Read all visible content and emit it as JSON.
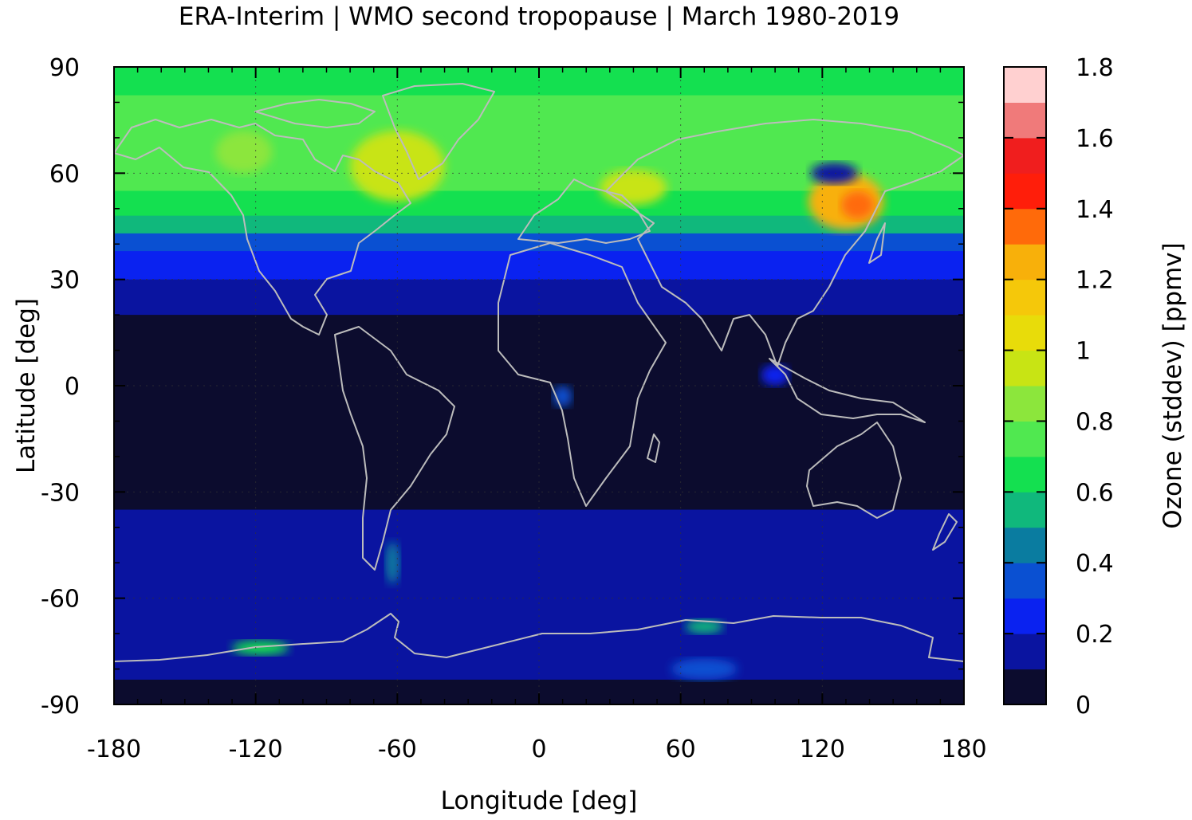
{
  "title": "ERA-Interim | WMO second tropopause | March 1980-2019",
  "chart_data": {
    "type": "heatmap",
    "title": "ERA-Interim | WMO second tropopause | March 1980-2019",
    "xlabel": "Longitude [deg]",
    "ylabel": "Latitude [deg]",
    "xlim": [
      -180,
      180
    ],
    "ylim": [
      -90,
      90
    ],
    "x_ticks": [
      -180,
      -120,
      -60,
      0,
      60,
      120,
      180
    ],
    "y_ticks": [
      90,
      60,
      30,
      0,
      -30,
      -60,
      -90
    ],
    "x_tick_labels": [
      "-180",
      "-120",
      "-60",
      "0",
      "60",
      "120",
      "180"
    ],
    "y_tick_labels": [
      "90",
      "60",
      "30",
      "0",
      "-30",
      "-60",
      "-90"
    ],
    "grid": true,
    "colorbar": {
      "label": "Ozone (stddev) [ppmv]",
      "range": [
        0,
        1.8
      ],
      "ticks": [
        0,
        0.2,
        0.4,
        0.6,
        0.8,
        1,
        1.2,
        1.4,
        1.6,
        1.8
      ],
      "tick_labels": [
        "0",
        "0.2",
        "0.4",
        "0.6",
        "0.8",
        "1",
        "1.2",
        "1.4",
        "1.6",
        "1.8"
      ],
      "levels": [
        {
          "min": 0.0,
          "max": 0.1,
          "color": "#0c0c2e"
        },
        {
          "min": 0.1,
          "max": 0.2,
          "color": "#0a14a0"
        },
        {
          "min": 0.2,
          "max": 0.3,
          "color": "#0a22f0"
        },
        {
          "min": 0.3,
          "max": 0.4,
          "color": "#0a50d2"
        },
        {
          "min": 0.4,
          "max": 0.5,
          "color": "#0a7ca0"
        },
        {
          "min": 0.5,
          "max": 0.6,
          "color": "#10b87c"
        },
        {
          "min": 0.6,
          "max": 0.7,
          "color": "#14e050"
        },
        {
          "min": 0.7,
          "max": 0.8,
          "color": "#50e850"
        },
        {
          "min": 0.8,
          "max": 0.9,
          "color": "#8ce63c"
        },
        {
          "min": 0.9,
          "max": 1.0,
          "color": "#c8e414"
        },
        {
          "min": 1.0,
          "max": 1.1,
          "color": "#e8dc0a"
        },
        {
          "min": 1.1,
          "max": 1.2,
          "color": "#f5c80a"
        },
        {
          "min": 1.2,
          "max": 1.3,
          "color": "#f8b00a"
        },
        {
          "min": 1.3,
          "max": 1.4,
          "color": "#ff6a0a"
        },
        {
          "min": 1.4,
          "max": 1.5,
          "color": "#ff1e0a"
        },
        {
          "min": 1.5,
          "max": 1.6,
          "color": "#f01e1e"
        },
        {
          "min": 1.6,
          "max": 1.7,
          "color": "#f07a7a"
        },
        {
          "min": 1.7,
          "max": 1.8,
          "color": "#ffd0d0"
        }
      ]
    },
    "zonal_bands": [
      {
        "lat_max": 90,
        "lat_min": 82,
        "value": 0.65
      },
      {
        "lat_max": 82,
        "lat_min": 70,
        "value": 0.7
      },
      {
        "lat_max": 70,
        "lat_min": 55,
        "value": 0.78
      },
      {
        "lat_max": 55,
        "lat_min": 48,
        "value": 0.68
      },
      {
        "lat_max": 48,
        "lat_min": 43,
        "value": 0.55
      },
      {
        "lat_max": 43,
        "lat_min": 38,
        "value": 0.35
      },
      {
        "lat_max": 38,
        "lat_min": 30,
        "value": 0.25
      },
      {
        "lat_max": 30,
        "lat_min": 20,
        "value": 0.15
      },
      {
        "lat_max": 20,
        "lat_min": -35,
        "value": 0.05
      },
      {
        "lat_max": -35,
        "lat_min": -78,
        "value": 0.15
      },
      {
        "lat_max": -78,
        "lat_min": -83,
        "value": 0.1
      },
      {
        "lat_max": -83,
        "lat_min": -90,
        "value": 0.05
      }
    ],
    "features": [
      {
        "lon": -60,
        "lat": 62,
        "value": 0.92,
        "rx": 20,
        "ry": 10
      },
      {
        "lon": -125,
        "lat": 66,
        "value": 0.85,
        "rx": 12,
        "ry": 6
      },
      {
        "lon": 40,
        "lat": 56,
        "value": 0.9,
        "rx": 14,
        "ry": 5
      },
      {
        "lon": 130,
        "lat": 52,
        "value": 1.25,
        "rx": 16,
        "ry": 8
      },
      {
        "lon": 135,
        "lat": 51,
        "value": 1.35,
        "rx": 7,
        "ry": 4
      },
      {
        "lon": 125,
        "lat": 60,
        "value": 0.15,
        "rx": 10,
        "ry": 3
      },
      {
        "lon": -118,
        "lat": -74,
        "value": 0.65,
        "rx": 12,
        "ry": 2
      },
      {
        "lon": 70,
        "lat": -68,
        "value": 0.55,
        "rx": 8,
        "ry": 2
      },
      {
        "lon": 70,
        "lat": -80,
        "value": 0.35,
        "rx": 14,
        "ry": 3
      },
      {
        "lon": -62,
        "lat": -50,
        "value": 0.4,
        "rx": 3,
        "ry": 6
      },
      {
        "lon": 10,
        "lat": -3,
        "value": 0.3,
        "rx": 4,
        "ry": 3
      },
      {
        "lon": 100,
        "lat": 3,
        "value": 0.25,
        "rx": 6,
        "ry": 3
      }
    ]
  }
}
